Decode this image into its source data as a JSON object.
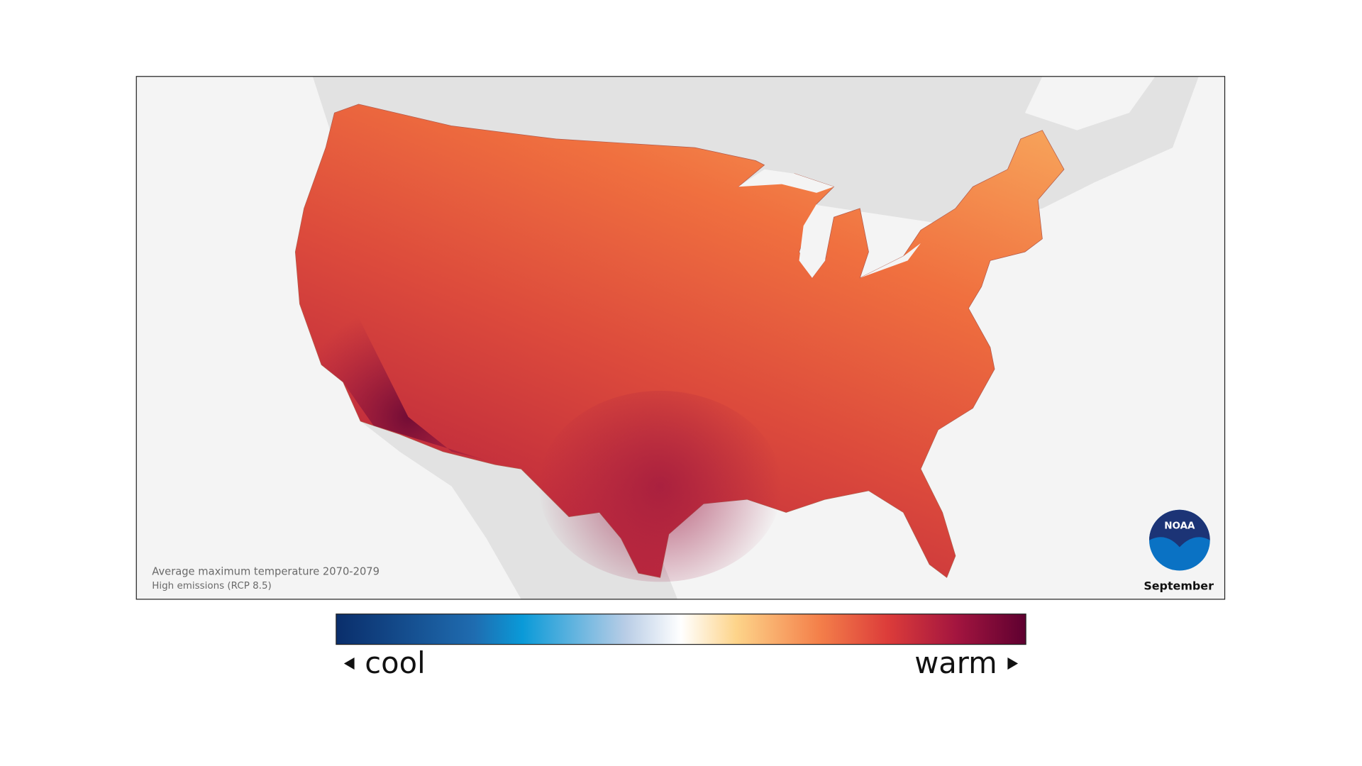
{
  "caption": {
    "title": "Average maximum temperature 2070-2079",
    "subtitle": "High emissions (RCP 8.5)"
  },
  "logo": "NOAA",
  "month": "September",
  "legend": {
    "low": "cool",
    "high": "warm"
  }
}
